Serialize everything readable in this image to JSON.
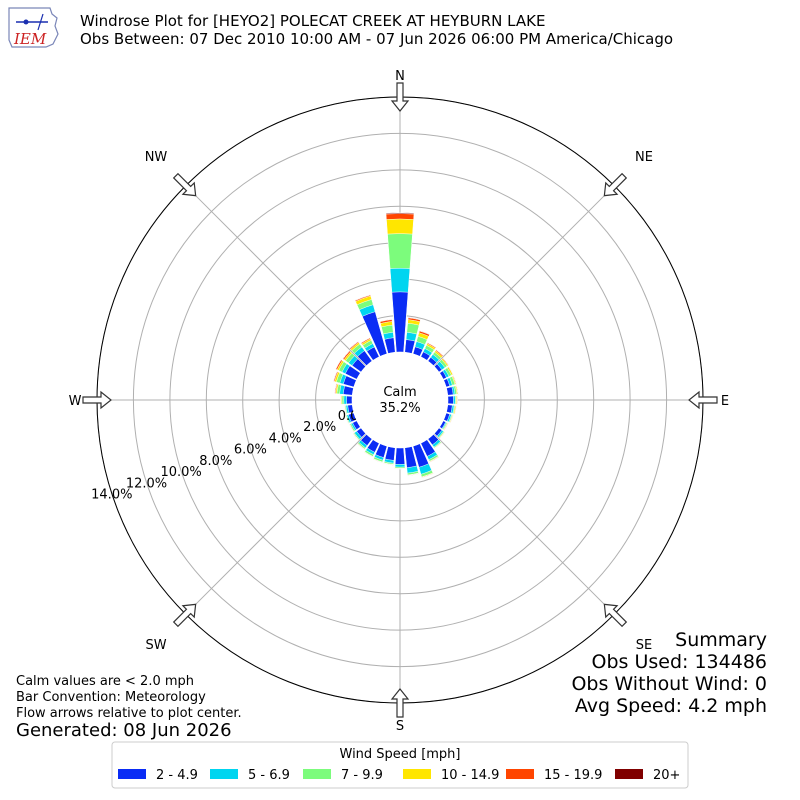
{
  "chart_data": {
    "type": "windrose",
    "title": "Windrose Plot for [HEYO2] POLECAT CREEK  AT HEYBURN LAKE",
    "subtitle": "Obs Between: 07 Dec 2010 10:00 AM - 07 Jun 2026 06:00 PM America/Chicago",
    "directions": [
      "N",
      "NE",
      "E",
      "SE",
      "S",
      "SW",
      "W",
      "NW"
    ],
    "radial_ticks": [
      "0.0%",
      "2.0%",
      "4.0%",
      "6.0%",
      "8.0%",
      "10.0%",
      "12.0%",
      "14.0%"
    ],
    "rlim": [
      0,
      14
    ],
    "calm": {
      "label": "Calm",
      "value": "35.2%"
    },
    "legend": {
      "title": "Wind Speed [mph]",
      "bins": [
        {
          "label": "2 - 4.9",
          "color": "#0a2cf5"
        },
        {
          "label": "5 - 6.9",
          "color": "#00d5f0"
        },
        {
          "label": "7 - 9.9",
          "color": "#7cfc7c"
        },
        {
          "label": "10 - 14.9",
          "color": "#ffe600"
        },
        {
          "label": "15 - 19.9",
          "color": "#ff4500"
        },
        {
          "label": "20+",
          "color": "#800000"
        }
      ]
    },
    "sectors": [
      {
        "dir": 0,
        "cum": [
          3.3,
          4.6,
          6.5,
          7.3,
          7.6,
          7.65
        ]
      },
      {
        "dir": 10,
        "cum": [
          0.7,
          1.1,
          1.6,
          1.8,
          1.9,
          1.92
        ]
      },
      {
        "dir": 20,
        "cum": [
          0.4,
          0.7,
          1.0,
          1.2,
          1.3,
          1.32
        ]
      },
      {
        "dir": 30,
        "cum": [
          0.3,
          0.5,
          0.7,
          0.8,
          0.85,
          0.86
        ]
      },
      {
        "dir": 40,
        "cum": [
          0.25,
          0.45,
          0.6,
          0.7,
          0.75,
          0.76
        ]
      },
      {
        "dir": 50,
        "cum": [
          0.2,
          0.4,
          0.55,
          0.62,
          0.65,
          0.66
        ]
      },
      {
        "dir": 60,
        "cum": [
          0.2,
          0.35,
          0.5,
          0.58,
          0.6,
          0.61
        ]
      },
      {
        "dir": 70,
        "cum": [
          0.2,
          0.35,
          0.5,
          0.55,
          0.58,
          0.59
        ]
      },
      {
        "dir": 80,
        "cum": [
          0.3,
          0.4,
          0.5,
          0.55,
          0.57,
          0.58
        ]
      },
      {
        "dir": 90,
        "cum": [
          0.3,
          0.4,
          0.45,
          0.5,
          0.52,
          0.53
        ]
      },
      {
        "dir": 100,
        "cum": [
          0.25,
          0.35,
          0.4,
          0.45,
          0.47,
          0.48
        ]
      },
      {
        "dir": 110,
        "cum": [
          0.2,
          0.3,
          0.35,
          0.38,
          0.4,
          0.41
        ]
      },
      {
        "dir": 120,
        "cum": [
          0.15,
          0.2,
          0.25,
          0.28,
          0.3,
          0.31
        ]
      },
      {
        "dir": 130,
        "cum": [
          0.2,
          0.3,
          0.35,
          0.38,
          0.39,
          0.4
        ]
      },
      {
        "dir": 140,
        "cum": [
          0.4,
          0.55,
          0.6,
          0.62,
          0.63,
          0.64
        ]
      },
      {
        "dir": 150,
        "cum": [
          0.8,
          1.0,
          1.1,
          1.13,
          1.15,
          1.16
        ]
      },
      {
        "dir": 160,
        "cum": [
          1.2,
          1.6,
          1.75,
          1.78,
          1.8,
          1.81
        ]
      },
      {
        "dir": 170,
        "cum": [
          1.1,
          1.4,
          1.5,
          1.52,
          1.53,
          1.54
        ]
      },
      {
        "dir": 180,
        "cum": [
          0.9,
          1.05,
          1.12,
          1.14,
          1.15,
          1.16
        ]
      },
      {
        "dir": 190,
        "cum": [
          0.7,
          0.85,
          0.92,
          0.94,
          0.95,
          0.96
        ]
      },
      {
        "dir": 200,
        "cum": [
          0.65,
          0.8,
          0.9,
          0.92,
          0.93,
          0.94
        ]
      },
      {
        "dir": 210,
        "cum": [
          0.55,
          0.7,
          0.8,
          0.82,
          0.83,
          0.84
        ]
      },
      {
        "dir": 220,
        "cum": [
          0.45,
          0.6,
          0.68,
          0.7,
          0.71,
          0.72
        ]
      },
      {
        "dir": 230,
        "cum": [
          0.3,
          0.45,
          0.5,
          0.52,
          0.53,
          0.54
        ]
      },
      {
        "dir": 240,
        "cum": [
          0.25,
          0.35,
          0.42,
          0.44,
          0.45,
          0.46
        ]
      },
      {
        "dir": 250,
        "cum": [
          0.3,
          0.4,
          0.45,
          0.47,
          0.48,
          0.49
        ]
      },
      {
        "dir": 260,
        "cum": [
          0.25,
          0.35,
          0.4,
          0.42,
          0.43,
          0.44
        ]
      },
      {
        "dir": 270,
        "cum": [
          0.3,
          0.45,
          0.55,
          0.6,
          0.62,
          0.63
        ]
      },
      {
        "dir": 280,
        "cum": [
          0.5,
          0.7,
          0.85,
          0.92,
          0.96,
          0.98
        ]
      },
      {
        "dir": 290,
        "cum": [
          0.6,
          0.8,
          1.0,
          1.1,
          1.15,
          1.17
        ]
      },
      {
        "dir": 300,
        "cum": [
          0.7,
          0.9,
          1.1,
          1.2,
          1.27,
          1.29
        ]
      },
      {
        "dir": 310,
        "cum": [
          0.6,
          0.85,
          1.05,
          1.15,
          1.22,
          1.24
        ]
      },
      {
        "dir": 320,
        "cum": [
          0.7,
          0.95,
          1.15,
          1.25,
          1.3,
          1.32
        ]
      },
      {
        "dir": 330,
        "cum": [
          0.6,
          0.8,
          1.0,
          1.1,
          1.15,
          1.16
        ]
      },
      {
        "dir": 340,
        "cum": [
          2.4,
          2.8,
          3.1,
          3.3,
          3.35,
          3.37
        ]
      },
      {
        "dir": 350,
        "cum": [
          0.8,
          1.1,
          1.5,
          1.7,
          1.8,
          1.82
        ]
      }
    ]
  },
  "summary": {
    "title": "Summary",
    "obs_used": "Obs Used: 134486",
    "obs_without_wind": "Obs Without Wind: 0",
    "avg_speed": "Avg Speed: 4.2 mph"
  },
  "notes": {
    "calm_note": "Calm values are < 2.0 mph",
    "bar_convention": "Bar Convention: Meteorology",
    "flow_arrows": "Flow arrows relative to plot center.",
    "generated": "Generated: 08 Jun 2026"
  },
  "logo": {
    "text": "IEM",
    "color": "#cc2222"
  }
}
